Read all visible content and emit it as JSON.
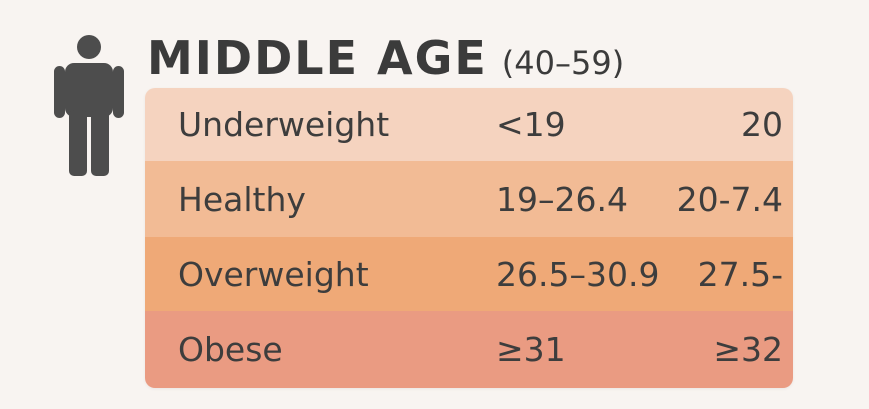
{
  "icon": "person-icon",
  "title": {
    "main": "MIDDLE AGE",
    "range": "(40–59)"
  },
  "rows": [
    {
      "category": "Underweight",
      "range_a": "<19",
      "range_b": "20",
      "color": "#f5d3bf"
    },
    {
      "category": "Healthy",
      "range_a": "19–26.4",
      "range_b": "20-7.4",
      "color": "#f2bb95"
    },
    {
      "category": "Overweight",
      "range_a": "26.5–30.9",
      "range_b": "27.5-",
      "color": "#efa977"
    },
    {
      "category": "Obese",
      "range_a": "≥31",
      "range_b": "≥32",
      "color": "#ea9b82"
    }
  ],
  "colors": {
    "background": "#f8f4f1",
    "text": "#3d3d3d",
    "icon": "#4d4d4d"
  }
}
